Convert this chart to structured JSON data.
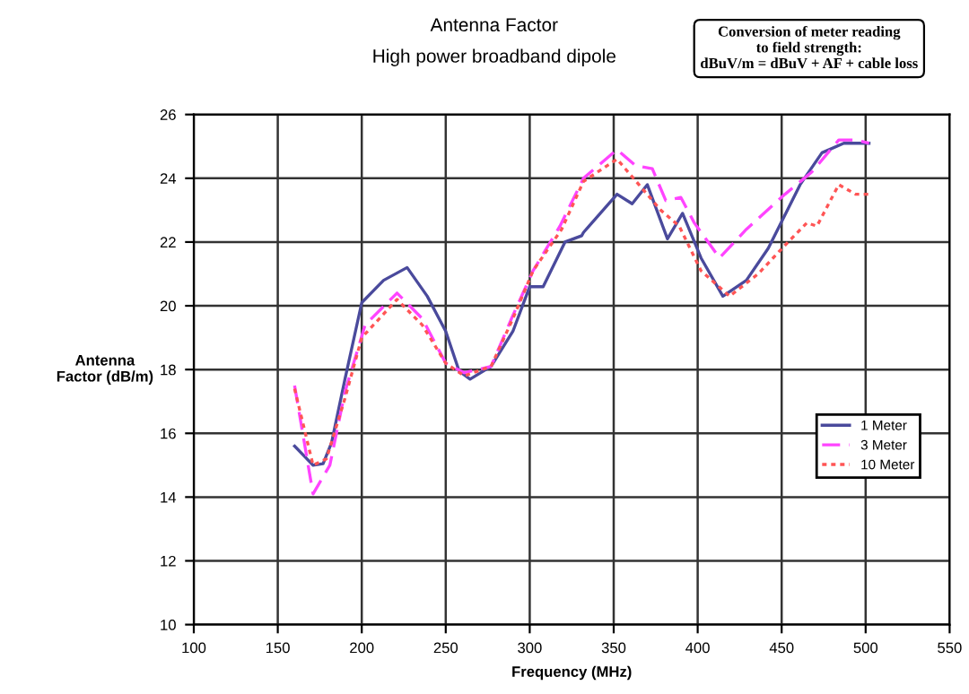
{
  "chart_data": {
    "type": "line",
    "title": "Antenna Factor",
    "subtitle": "High power broadband dipole",
    "xlabel": "Frequency (MHz)",
    "ylabel": "Antenna\nFactor (dB/m)",
    "annotations": [
      "Conversion of meter reading\nto field strength:\ndBuV/m = dBuV + AF + cable loss"
    ],
    "xlim": [
      100,
      550
    ],
    "xticks": [
      100,
      150,
      200,
      250,
      300,
      350,
      400,
      450,
      500,
      550
    ],
    "ylim": [
      10,
      26
    ],
    "yticks": [
      10,
      12,
      14,
      16,
      18,
      20,
      22,
      24,
      26
    ],
    "grid": true,
    "legend": "right",
    "series": [
      {
        "name": "1 Meter",
        "color": "#4a4a9c",
        "line_style": "solid",
        "x": [
          160,
          171,
          177,
          182,
          190,
          200,
          213,
          227,
          239,
          250,
          258,
          264.5,
          277,
          290,
          300,
          308,
          321,
          331,
          332,
          352,
          361,
          370,
          382,
          391,
          402,
          415,
          429,
          442,
          461,
          474,
          487,
          502
        ],
        "values": [
          15.6,
          15.0,
          15.05,
          15.7,
          17.7,
          20.1,
          20.8,
          21.2,
          20.3,
          19.2,
          17.95,
          17.7,
          18.1,
          19.2,
          20.6,
          20.6,
          22.0,
          22.2,
          22.3,
          23.5,
          23.2,
          23.8,
          22.1,
          22.9,
          21.5,
          20.3,
          20.8,
          21.8,
          23.8,
          24.8,
          25.1,
          25.1
        ]
      },
      {
        "name": "3 Meter",
        "color": "#ff44ff",
        "line_style": "dashed",
        "x": [
          160,
          171,
          181,
          190,
          202,
          221,
          236,
          250,
          261,
          277,
          290,
          302,
          318,
          332,
          352,
          363,
          373,
          381,
          390,
          398,
          413,
          429,
          452,
          468,
          484,
          494,
          502
        ],
        "values": [
          17.5,
          14.1,
          15.0,
          17.3,
          19.4,
          20.4,
          19.6,
          18.2,
          17.9,
          18.1,
          19.7,
          21.1,
          22.5,
          24.0,
          24.9,
          24.4,
          24.3,
          23.3,
          23.4,
          22.6,
          21.5,
          22.4,
          23.5,
          24.2,
          25.2,
          25.2,
          25.1
        ]
      },
      {
        "name": "10 Meter",
        "color": "#ff5555",
        "line_style": "dotted",
        "x": [
          160,
          171,
          179,
          190,
          200,
          221,
          236,
          250,
          261,
          277,
          290,
          302,
          319,
          332,
          352,
          365,
          378,
          389,
          402,
          419,
          436,
          452,
          465,
          471,
          484,
          494,
          502
        ],
        "values": [
          17.4,
          15.0,
          15.2,
          17.1,
          19.0,
          20.2,
          19.4,
          18.2,
          17.8,
          18.1,
          19.6,
          21.1,
          22.4,
          23.9,
          24.6,
          23.8,
          23.0,
          22.5,
          21.1,
          20.3,
          21.0,
          21.9,
          22.6,
          22.5,
          23.8,
          23.5,
          23.5
        ]
      }
    ]
  }
}
